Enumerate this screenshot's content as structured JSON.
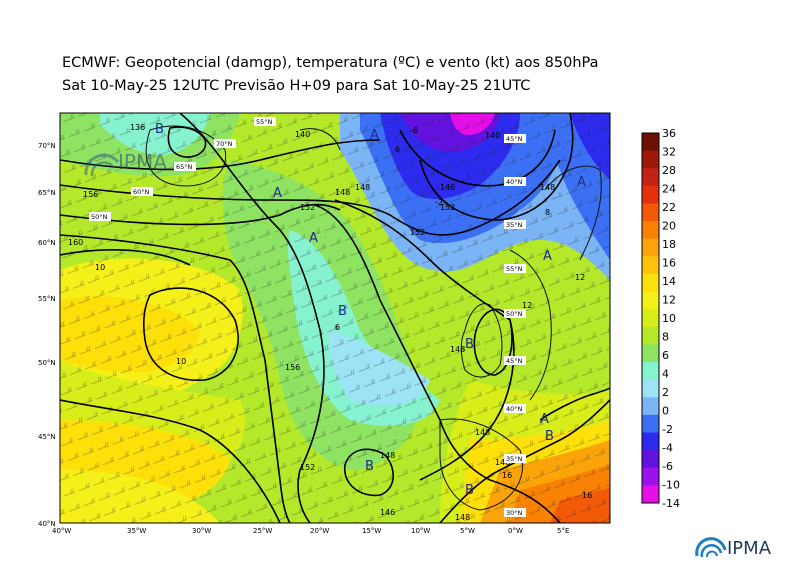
{
  "title_line1": "ECMWF:  Geopotencial (damgp), temperatura (ºC) e vento (kt) aos 850hPa",
  "title_line2": "Sat 10-May-25 12UTC Previsão H+09 para Sat 10-May-25 21UTC",
  "logo": {
    "text": "IPMA"
  },
  "map_axes": {
    "x_ticks": [
      "40°W",
      "35°W",
      "30°W",
      "25°W",
      "20°W",
      "15°W",
      "10°W",
      "5°W",
      "0°W",
      "5°E"
    ],
    "y_ticks": [
      "70°N",
      "65°N",
      "60°N",
      "55°N",
      "50°N",
      "45°N",
      "40°N"
    ]
  },
  "colorbar": {
    "labels": [
      "36",
      "32",
      "28",
      "24",
      "22",
      "20",
      "18",
      "16",
      "14",
      "12",
      "10",
      "8",
      "6",
      "4",
      "2",
      "0",
      "-2",
      "-4",
      "-6",
      "-10",
      "-14"
    ],
    "colors": [
      "#6b1200",
      "#9c1a07",
      "#c42314",
      "#e3310d",
      "#f25a07",
      "#f98203",
      "#fba40a",
      "#fcc309",
      "#fde009",
      "#f5f019",
      "#d7ee1a",
      "#b4e82b",
      "#8ee362",
      "#87f2cf",
      "#9be3f5",
      "#7bb5f6",
      "#3b70f5",
      "#2c2bee",
      "#6412e0",
      "#9b12ea",
      "#e60ee6"
    ]
  },
  "pressure_labels": [
    {
      "t": "A",
      "c": "#1a2a8a"
    },
    {
      "t": "A",
      "c": "#1a2a8a"
    },
    {
      "t": "A",
      "c": "#1a2a8a"
    },
    {
      "t": "A",
      "c": "#1a2a8a"
    },
    {
      "t": "A",
      "c": "#1a2a8a"
    },
    {
      "t": "A",
      "c": "#1a2a8a"
    },
    {
      "t": "B",
      "c": "#1a2a8a"
    },
    {
      "t": "B",
      "c": "#1a2a8a"
    },
    {
      "t": "B",
      "c": "#1a2a8a"
    },
    {
      "t": "B",
      "c": "#1a2a8a"
    },
    {
      "t": "B",
      "c": "#1a2a8a"
    },
    {
      "t": "B",
      "c": "#1a2a8a"
    },
    {
      "t": "B",
      "c": "#1a2a8a"
    }
  ],
  "grid_labels": [
    "70°N",
    "65°N",
    "60°N",
    "55°N",
    "50°N",
    "45°N",
    "40°N",
    "35°N",
    "30°N",
    "55°N",
    "50°N",
    "45°N",
    "40°N",
    "35°N"
  ],
  "contour_labels": [
    "152",
    "148",
    "148",
    "146",
    "140",
    "136",
    "156",
    "156",
    "160",
    "140",
    "148",
    "148",
    "148",
    "152",
    "148",
    "146",
    "148",
    "152",
    "146",
    "152",
    "10",
    "10",
    "6",
    "6",
    "-6",
    "-2",
    "16",
    "16",
    "12",
    "12",
    "8"
  ]
}
